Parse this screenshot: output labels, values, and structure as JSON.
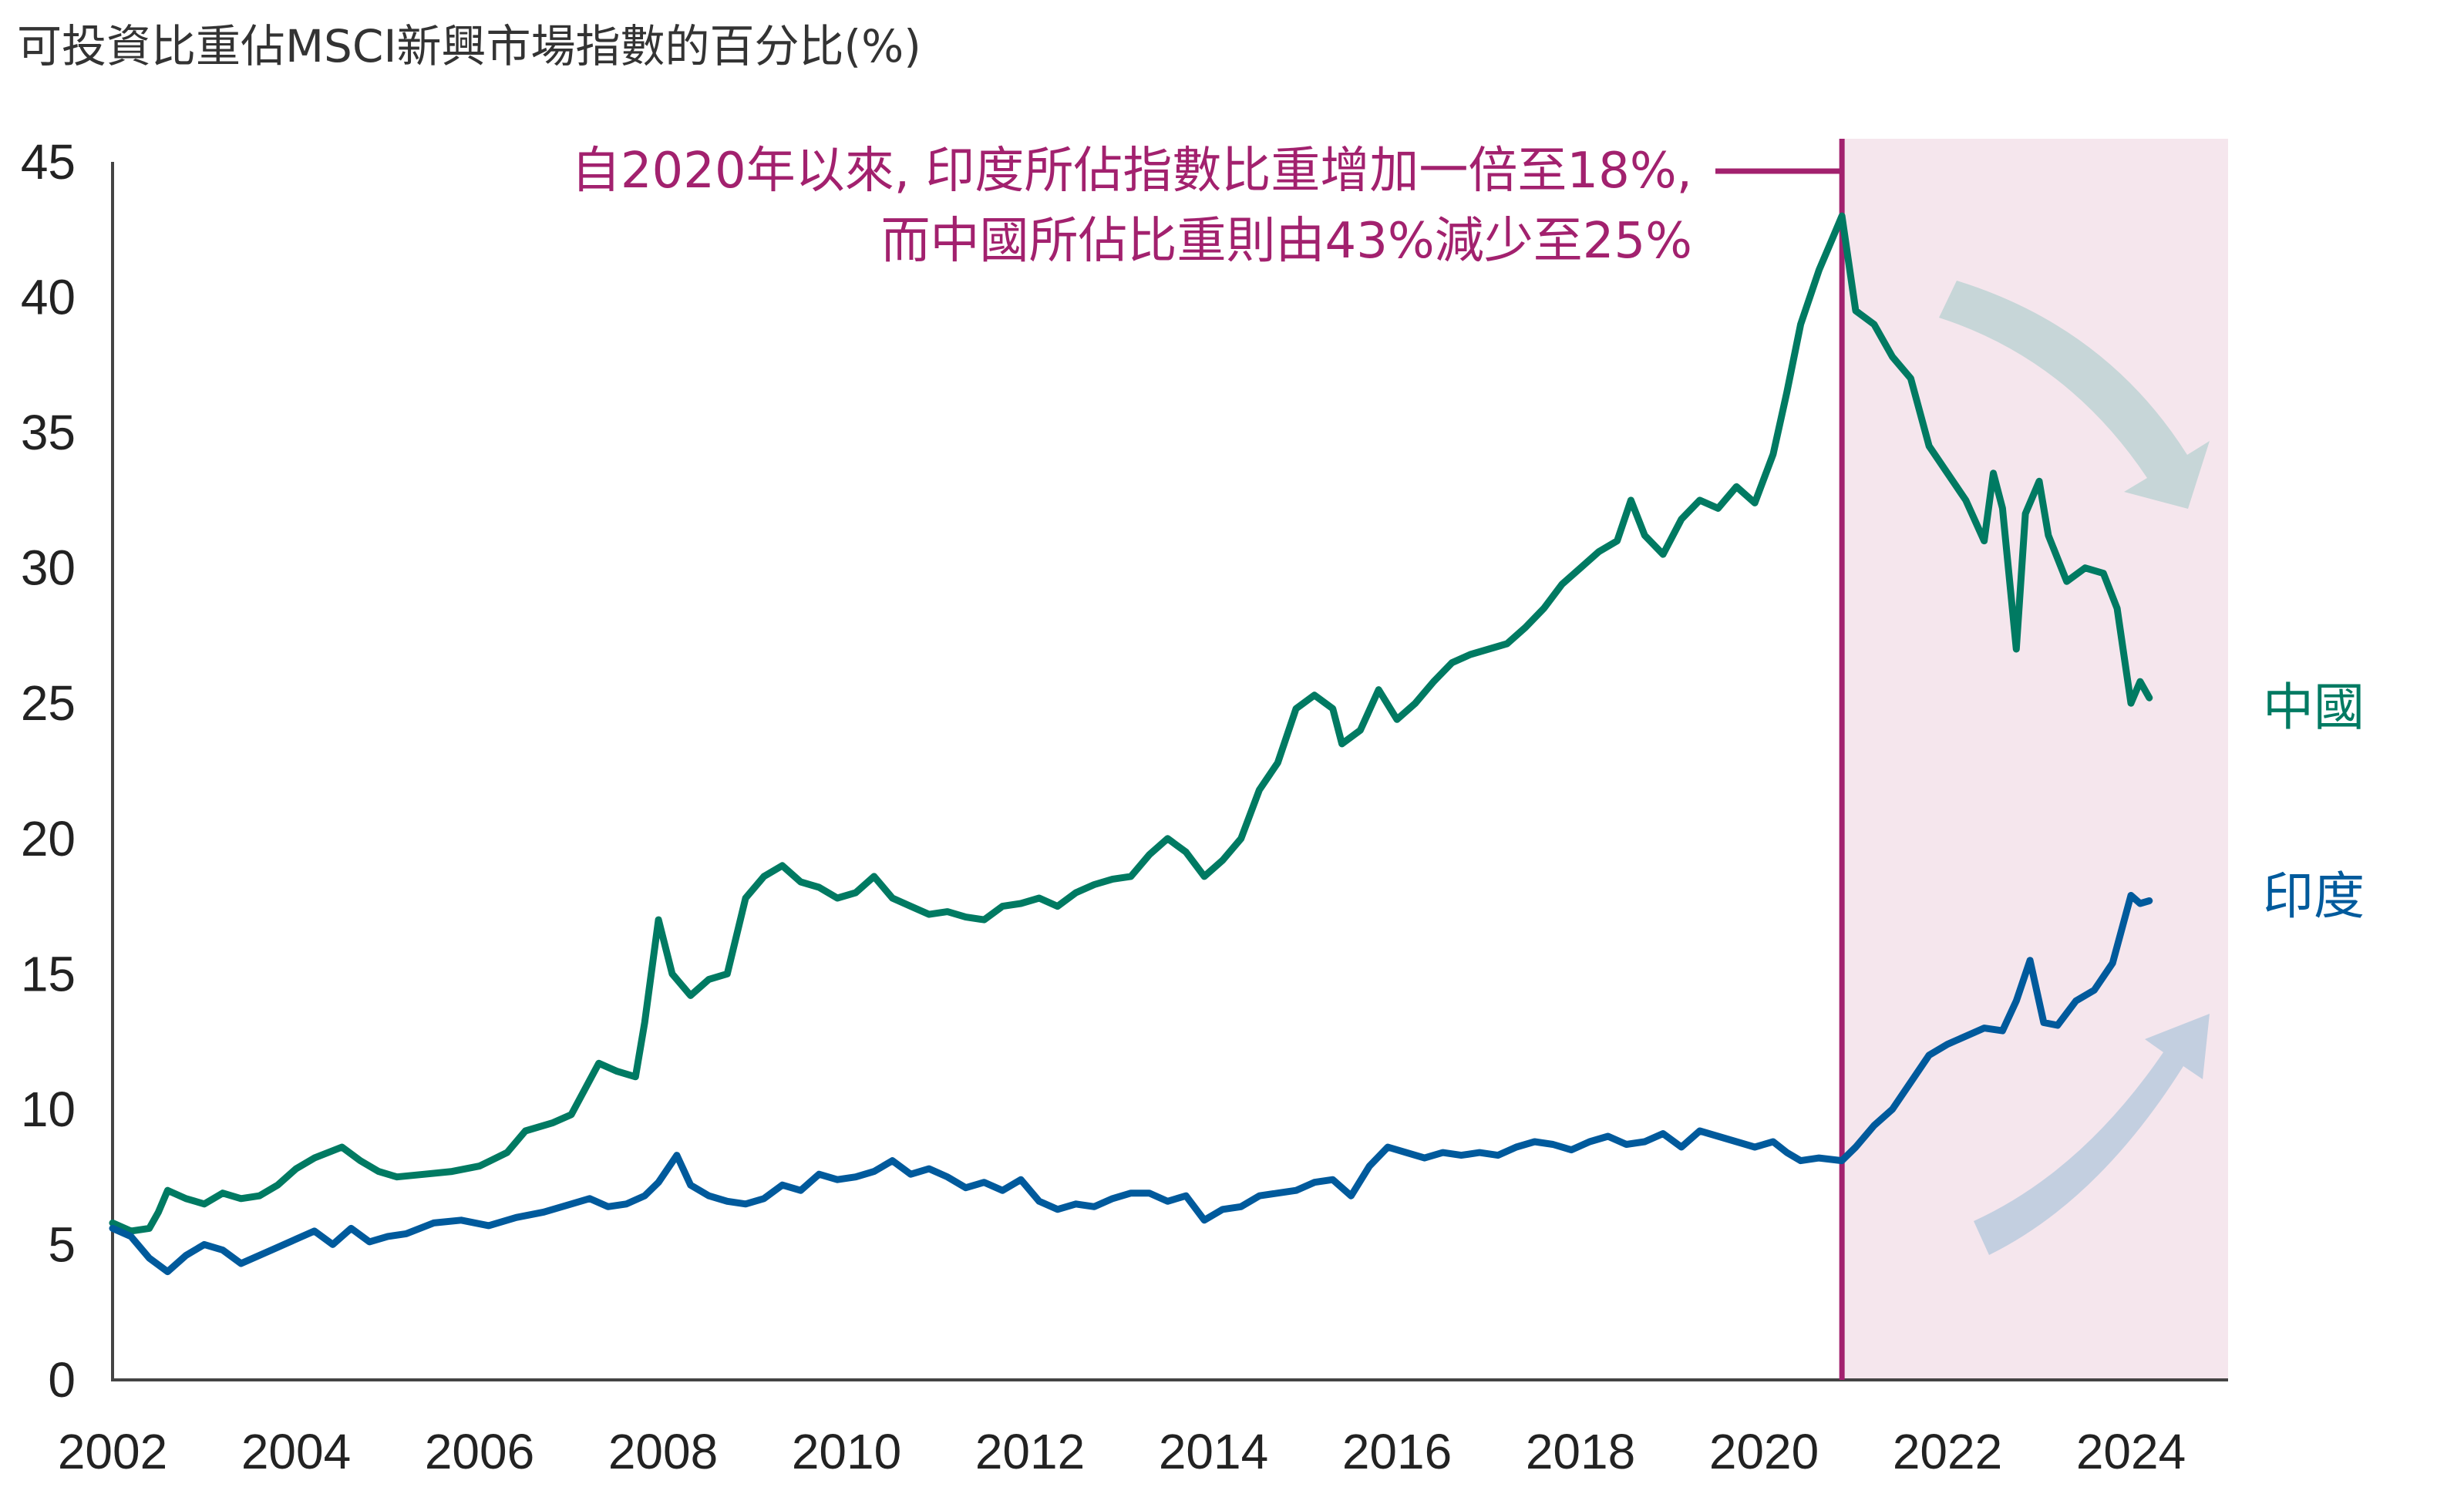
{
  "chart_data": {
    "type": "line",
    "title": "可投資比重佔MSCI新興市場指數的百分比(%)",
    "xlabel": "",
    "ylabel": "",
    "xlim": [
      2002.0,
      2025.0
    ],
    "ylim": [
      0,
      45
    ],
    "y_ticks": [
      "0",
      "5",
      "10",
      "15",
      "20",
      "25",
      "30",
      "35",
      "40",
      "45"
    ],
    "x_ticks": [
      "2002",
      "2004",
      "2006",
      "2008",
      "2010",
      "2012",
      "2014",
      "2016",
      "2018",
      "2020",
      "2022",
      "2024"
    ],
    "grid": false,
    "legend": "right, beside line ends",
    "annotation": {
      "lines": [
        "自2020年以來, 印度所佔指數比重增加一倍至18%,",
        "而中國所佔比重則由43%減少至25%"
      ],
      "event_x": 2020.85,
      "color": "#a2216e"
    },
    "shaded_region": {
      "x_start": 2020.85,
      "x_end": 2024.0,
      "color": "#f5e6ed"
    },
    "arrows": [
      {
        "direction": "down",
        "color": "#c7d6d8"
      },
      {
        "direction": "up",
        "color": "#c3cfe0"
      }
    ],
    "series": [
      {
        "name": "中國",
        "color": "#007a62",
        "x": [
          2002.0,
          2002.2,
          2002.4,
          2002.5,
          2002.6,
          2002.8,
          2003.0,
          2003.2,
          2003.4,
          2003.6,
          2003.8,
          2004.0,
          2004.2,
          2004.5,
          2004.7,
          2004.9,
          2005.1,
          2005.4,
          2005.7,
          2006.0,
          2006.3,
          2006.5,
          2006.8,
          2007.0,
          2007.3,
          2007.5,
          2007.7,
          2007.8,
          2007.95,
          2008.1,
          2008.3,
          2008.5,
          2008.7,
          2008.9,
          2009.1,
          2009.3,
          2009.5,
          2009.7,
          2009.9,
          2010.1,
          2010.3,
          2010.5,
          2010.7,
          2010.9,
          2011.1,
          2011.3,
          2011.5,
          2011.7,
          2011.9,
          2012.1,
          2012.3,
          2012.5,
          2012.7,
          2012.9,
          2013.1,
          2013.3,
          2013.5,
          2013.7,
          2013.9,
          2014.1,
          2014.3,
          2014.5,
          2014.7,
          2014.9,
          2015.1,
          2015.3,
          2015.4,
          2015.6,
          2015.8,
          2016.0,
          2016.2,
          2016.4,
          2016.6,
          2016.8,
          2017.0,
          2017.2,
          2017.4,
          2017.6,
          2017.8,
          2018.0,
          2018.2,
          2018.4,
          2018.55,
          2018.7,
          2018.9,
          2019.1,
          2019.3,
          2019.5,
          2019.7,
          2019.9,
          2020.1,
          2020.25,
          2020.4,
          2020.6,
          2020.75,
          2020.85,
          2021.0,
          2021.2,
          2021.4,
          2021.6,
          2021.8,
          2022.0,
          2022.2,
          2022.4,
          2022.5,
          2022.6,
          2022.75,
          2022.85,
          2023.0,
          2023.1,
          2023.3,
          2023.5,
          2023.7,
          2023.85,
          2024.0,
          2024.1,
          2024.2
        ],
        "y": [
          5.8,
          5.5,
          5.6,
          6.2,
          7.0,
          6.7,
          6.5,
          6.9,
          6.7,
          6.8,
          7.2,
          7.8,
          8.2,
          8.6,
          8.1,
          7.7,
          7.5,
          7.6,
          7.7,
          7.9,
          8.4,
          9.2,
          9.5,
          9.8,
          11.7,
          11.4,
          11.2,
          13.2,
          17.0,
          15.0,
          14.2,
          14.8,
          15.0,
          17.8,
          18.6,
          19.0,
          18.4,
          18.2,
          17.8,
          18.0,
          18.6,
          17.8,
          17.5,
          17.2,
          17.3,
          17.1,
          17.0,
          17.5,
          17.6,
          17.8,
          17.5,
          18.0,
          18.3,
          18.5,
          18.6,
          19.4,
          20.0,
          19.5,
          18.6,
          19.2,
          20.0,
          21.8,
          22.8,
          24.8,
          25.3,
          24.8,
          23.5,
          24.0,
          25.5,
          24.4,
          25.0,
          25.8,
          26.5,
          26.8,
          27.0,
          27.2,
          27.8,
          28.5,
          29.4,
          30.0,
          30.6,
          31.0,
          32.5,
          31.2,
          30.5,
          31.8,
          32.5,
          32.2,
          33.0,
          32.4,
          34.2,
          36.5,
          39.0,
          41.0,
          42.2,
          43.0,
          39.5,
          39.0,
          37.8,
          37.0,
          34.5,
          33.5,
          32.5,
          31.0,
          33.5,
          32.2,
          27.0,
          32.0,
          33.2,
          31.2,
          29.5,
          30.0,
          29.8,
          28.5,
          25.0,
          25.8,
          25.2
        ]
      },
      {
        "name": "印度",
        "color": "#005a9c",
        "x": [
          2002.0,
          2002.2,
          2002.4,
          2002.6,
          2002.8,
          2003.0,
          2003.2,
          2003.4,
          2003.6,
          2003.8,
          2004.0,
          2004.2,
          2004.4,
          2004.6,
          2004.8,
          2005.0,
          2005.2,
          2005.5,
          2005.8,
          2006.1,
          2006.4,
          2006.7,
          2007.0,
          2007.2,
          2007.4,
          2007.6,
          2007.8,
          2007.95,
          2008.15,
          2008.3,
          2008.5,
          2008.7,
          2008.9,
          2009.1,
          2009.3,
          2009.5,
          2009.7,
          2009.9,
          2010.1,
          2010.3,
          2010.5,
          2010.7,
          2010.9,
          2011.1,
          2011.3,
          2011.5,
          2011.7,
          2011.9,
          2012.1,
          2012.3,
          2012.5,
          2012.7,
          2012.9,
          2013.1,
          2013.3,
          2013.5,
          2013.7,
          2013.9,
          2014.1,
          2014.3,
          2014.5,
          2014.7,
          2014.9,
          2015.1,
          2015.3,
          2015.5,
          2015.7,
          2015.9,
          2016.1,
          2016.3,
          2016.5,
          2016.7,
          2016.9,
          2017.1,
          2017.3,
          2017.5,
          2017.7,
          2017.9,
          2018.1,
          2018.3,
          2018.5,
          2018.7,
          2018.9,
          2019.1,
          2019.3,
          2019.5,
          2019.7,
          2019.9,
          2020.1,
          2020.25,
          2020.4,
          2020.6,
          2020.85,
          2021.0,
          2021.2,
          2021.4,
          2021.6,
          2021.8,
          2022.0,
          2022.2,
          2022.4,
          2022.6,
          2022.75,
          2022.9,
          2023.05,
          2023.2,
          2023.4,
          2023.6,
          2023.8,
          2024.0,
          2024.1,
          2024.2
        ],
        "y": [
          5.6,
          5.3,
          4.5,
          4.0,
          4.6,
          5.0,
          4.8,
          4.3,
          4.6,
          4.9,
          5.2,
          5.5,
          5.0,
          5.6,
          5.1,
          5.3,
          5.4,
          5.8,
          5.9,
          5.7,
          6.0,
          6.2,
          6.5,
          6.7,
          6.4,
          6.5,
          6.8,
          7.3,
          8.3,
          7.2,
          6.8,
          6.6,
          6.5,
          6.7,
          7.2,
          7.0,
          7.6,
          7.4,
          7.5,
          7.7,
          8.1,
          7.6,
          7.8,
          7.5,
          7.1,
          7.3,
          7.0,
          7.4,
          6.6,
          6.3,
          6.5,
          6.4,
          6.7,
          6.9,
          6.9,
          6.6,
          6.8,
          5.9,
          6.3,
          6.4,
          6.8,
          6.9,
          7.0,
          7.3,
          7.4,
          6.8,
          7.9,
          8.6,
          8.4,
          8.2,
          8.4,
          8.3,
          8.4,
          8.3,
          8.6,
          8.8,
          8.7,
          8.5,
          8.8,
          9.0,
          8.7,
          8.8,
          9.1,
          8.6,
          9.2,
          9.0,
          8.8,
          8.6,
          8.8,
          8.4,
          8.1,
          8.2,
          8.1,
          8.6,
          9.4,
          10.0,
          11.0,
          12.0,
          12.4,
          12.7,
          13.0,
          12.9,
          14.0,
          15.5,
          13.2,
          13.1,
          14.0,
          14.4,
          15.4,
          17.9,
          17.6,
          17.7
        ]
      }
    ]
  }
}
